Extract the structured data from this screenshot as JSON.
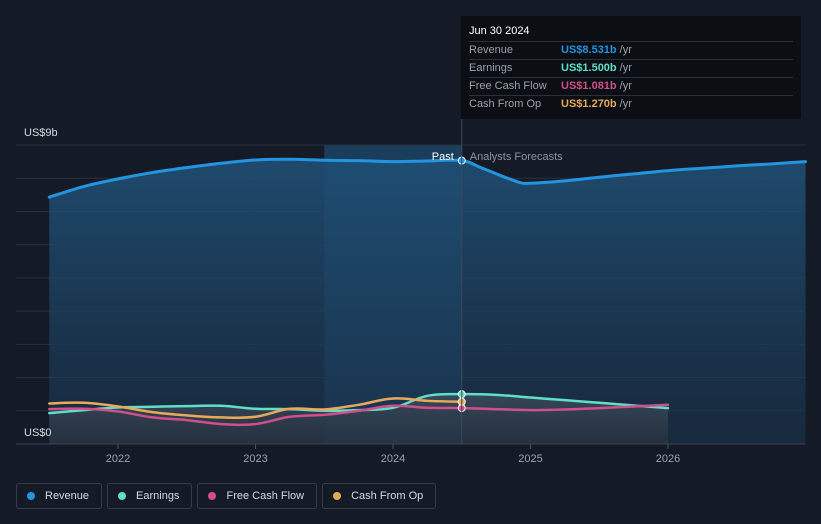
{
  "colors": {
    "background": "#151b26",
    "revenue": "#2394df",
    "earnings": "#60dec8",
    "free_cash_flow": "#d04f8a",
    "cash_from_op": "#e8a95a",
    "grid": "#2a303b",
    "past_shade": "#1b3a55"
  },
  "tooltip": {
    "date": "Jun 30 2024",
    "rows": [
      {
        "label": "Revenue",
        "value": "US$8.531b",
        "unit": "/yr",
        "color": "#2394df"
      },
      {
        "label": "Earnings",
        "value": "US$1.500b",
        "unit": "/yr",
        "color": "#60dec8"
      },
      {
        "label": "Free Cash Flow",
        "value": "US$1.081b",
        "unit": "/yr",
        "color": "#d04f8a"
      },
      {
        "label": "Cash From Op",
        "value": "US$1.270b",
        "unit": "/yr",
        "color": "#e8a95a"
      }
    ]
  },
  "legend": [
    {
      "label": "Revenue",
      "color": "#2394df"
    },
    {
      "label": "Earnings",
      "color": "#60dec8"
    },
    {
      "label": "Free Cash Flow",
      "color": "#d04f8a"
    },
    {
      "label": "Cash From Op",
      "color": "#e8a95a"
    }
  ],
  "chart_data": {
    "type": "line",
    "title": "",
    "xlabel": "",
    "ylabel": "",
    "y_top_label": "US$9b",
    "y_bottom_label": "US$0",
    "ylim": [
      0,
      9
    ],
    "xlim": [
      2021.5,
      2027.0
    ],
    "xticks": [
      {
        "value": 2022,
        "label": "2022"
      },
      {
        "value": 2023,
        "label": "2023"
      },
      {
        "value": 2024,
        "label": "2024"
      },
      {
        "value": 2025,
        "label": "2025"
      },
      {
        "value": 2026,
        "label": "2026"
      }
    ],
    "gridlines": [
      1,
      2,
      3,
      4,
      5,
      6,
      7,
      8,
      9
    ],
    "past_label": "Past",
    "forecast_label": "Analysts Forecasts",
    "divider_x": 2024.5,
    "highlight_range": [
      2023.5,
      2024.5
    ],
    "series": [
      {
        "name": "Revenue",
        "color": "#2394df",
        "area": true,
        "x": [
          2021.5,
          2021.75,
          2022.0,
          2022.25,
          2022.5,
          2022.75,
          2023.0,
          2023.25,
          2023.5,
          2023.75,
          2024.0,
          2024.25,
          2024.5,
          2024.65,
          2024.9,
          2025.0,
          2025.25,
          2025.5,
          2025.75,
          2026.0,
          2026.25,
          2026.5,
          2026.75,
          2027.0
        ],
        "values": [
          7.43,
          7.75,
          7.98,
          8.17,
          8.32,
          8.45,
          8.55,
          8.57,
          8.54,
          8.53,
          8.5,
          8.52,
          8.531,
          8.3,
          7.9,
          7.85,
          7.92,
          8.03,
          8.13,
          8.23,
          8.3,
          8.37,
          8.43,
          8.5
        ]
      },
      {
        "name": "Earnings",
        "color": "#60dec8",
        "area": true,
        "x": [
          2021.5,
          2021.75,
          2022.0,
          2022.25,
          2022.5,
          2022.75,
          2023.0,
          2023.25,
          2023.5,
          2023.75,
          2024.0,
          2024.25,
          2024.5,
          2024.75,
          2025.0,
          2025.25,
          2025.5,
          2025.75,
          2026.0
        ],
        "values": [
          0.93,
          1.02,
          1.1,
          1.12,
          1.14,
          1.15,
          1.06,
          1.05,
          1.0,
          1.02,
          1.09,
          1.45,
          1.5,
          1.48,
          1.4,
          1.32,
          1.24,
          1.16,
          1.08
        ]
      },
      {
        "name": "Free Cash Flow",
        "color": "#d04f8a",
        "area": false,
        "x": [
          2021.5,
          2021.75,
          2022.0,
          2022.25,
          2022.5,
          2022.75,
          2023.0,
          2023.25,
          2023.5,
          2023.75,
          2024.0,
          2024.25,
          2024.5,
          2024.75,
          2025.0,
          2025.25,
          2025.5,
          2025.75,
          2026.0
        ],
        "values": [
          1.05,
          1.06,
          0.98,
          0.8,
          0.72,
          0.6,
          0.6,
          0.82,
          0.88,
          1.0,
          1.15,
          1.09,
          1.081,
          1.05,
          1.02,
          1.04,
          1.08,
          1.13,
          1.18
        ]
      },
      {
        "name": "Cash From Op",
        "color": "#e8a95a",
        "area": false,
        "x": [
          2021.5,
          2021.75,
          2022.0,
          2022.25,
          2022.5,
          2022.75,
          2023.0,
          2023.25,
          2023.5,
          2023.75,
          2024.0,
          2024.25,
          2024.5
        ],
        "values": [
          1.22,
          1.24,
          1.13,
          0.96,
          0.86,
          0.8,
          0.82,
          1.06,
          1.04,
          1.18,
          1.37,
          1.3,
          1.27
        ]
      }
    ]
  }
}
